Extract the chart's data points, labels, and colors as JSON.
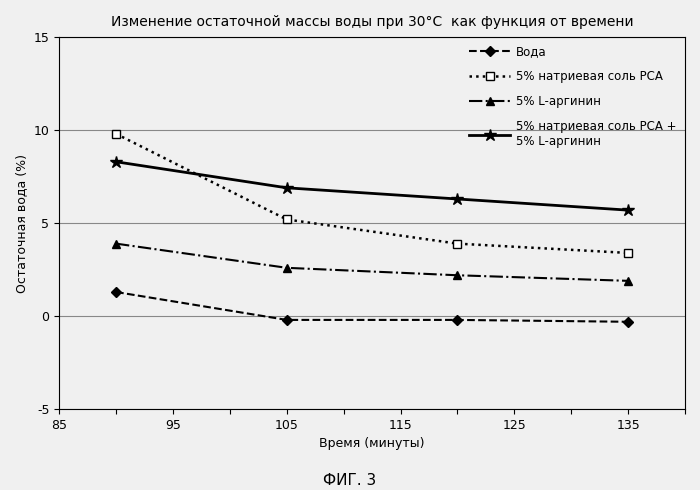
{
  "title": "Изменение остаточной массы воды при 30°C  как функция от времени",
  "xlabel": "Время (минуты)",
  "ylabel": "Остаточная вода (%)",
  "figcaption": "ФИГ. 3",
  "xlim": [
    85,
    140
  ],
  "ylim": [
    -5,
    15
  ],
  "xticks": [
    85,
    90,
    95,
    100,
    105,
    110,
    115,
    120,
    125,
    130,
    135,
    140
  ],
  "xtick_labels": [
    "85",
    "",
    "95",
    "",
    "105",
    "",
    "115",
    "",
    "125",
    "",
    "135",
    ""
  ],
  "yticks": [
    -5,
    0,
    5,
    10,
    15
  ],
  "series": [
    {
      "name": "Вода",
      "x": [
        90,
        105,
        120,
        135
      ],
      "y": [
        1.3,
        -0.2,
        -0.2,
        -0.3
      ],
      "color": "#000000",
      "linestyle": "--",
      "marker": "D",
      "markersize": 5,
      "linewidth": 1.5,
      "markerfacecolor": "#000000"
    },
    {
      "name": "5% натриевая соль РСА",
      "x": [
        90,
        105,
        120,
        135
      ],
      "y": [
        9.8,
        5.2,
        3.9,
        3.4
      ],
      "color": "#000000",
      "linestyle": ":",
      "marker": "s",
      "markersize": 6,
      "linewidth": 1.8,
      "markerfacecolor": "white"
    },
    {
      "name": "5% L-аргинин",
      "x": [
        90,
        105,
        120,
        135
      ],
      "y": [
        3.9,
        2.6,
        2.2,
        1.9
      ],
      "color": "#000000",
      "linestyle": "-.",
      "marker": "^",
      "markersize": 6,
      "linewidth": 1.5,
      "markerfacecolor": "#000000"
    },
    {
      "name": "5% натриевая соль РСА +\n5% L-аргинин",
      "x": [
        90,
        105,
        120,
        135
      ],
      "y": [
        8.3,
        6.9,
        6.3,
        5.7
      ],
      "color": "#000000",
      "linestyle": "-",
      "marker": "*",
      "markersize": 9,
      "linewidth": 2.0,
      "markerfacecolor": "#000000"
    }
  ],
  "background_color": "#f0f0f0",
  "plot_bg_color": "#f0f0f0",
  "title_fontsize": 10,
  "axis_label_fontsize": 9,
  "tick_fontsize": 9,
  "legend_fontsize": 8.5
}
